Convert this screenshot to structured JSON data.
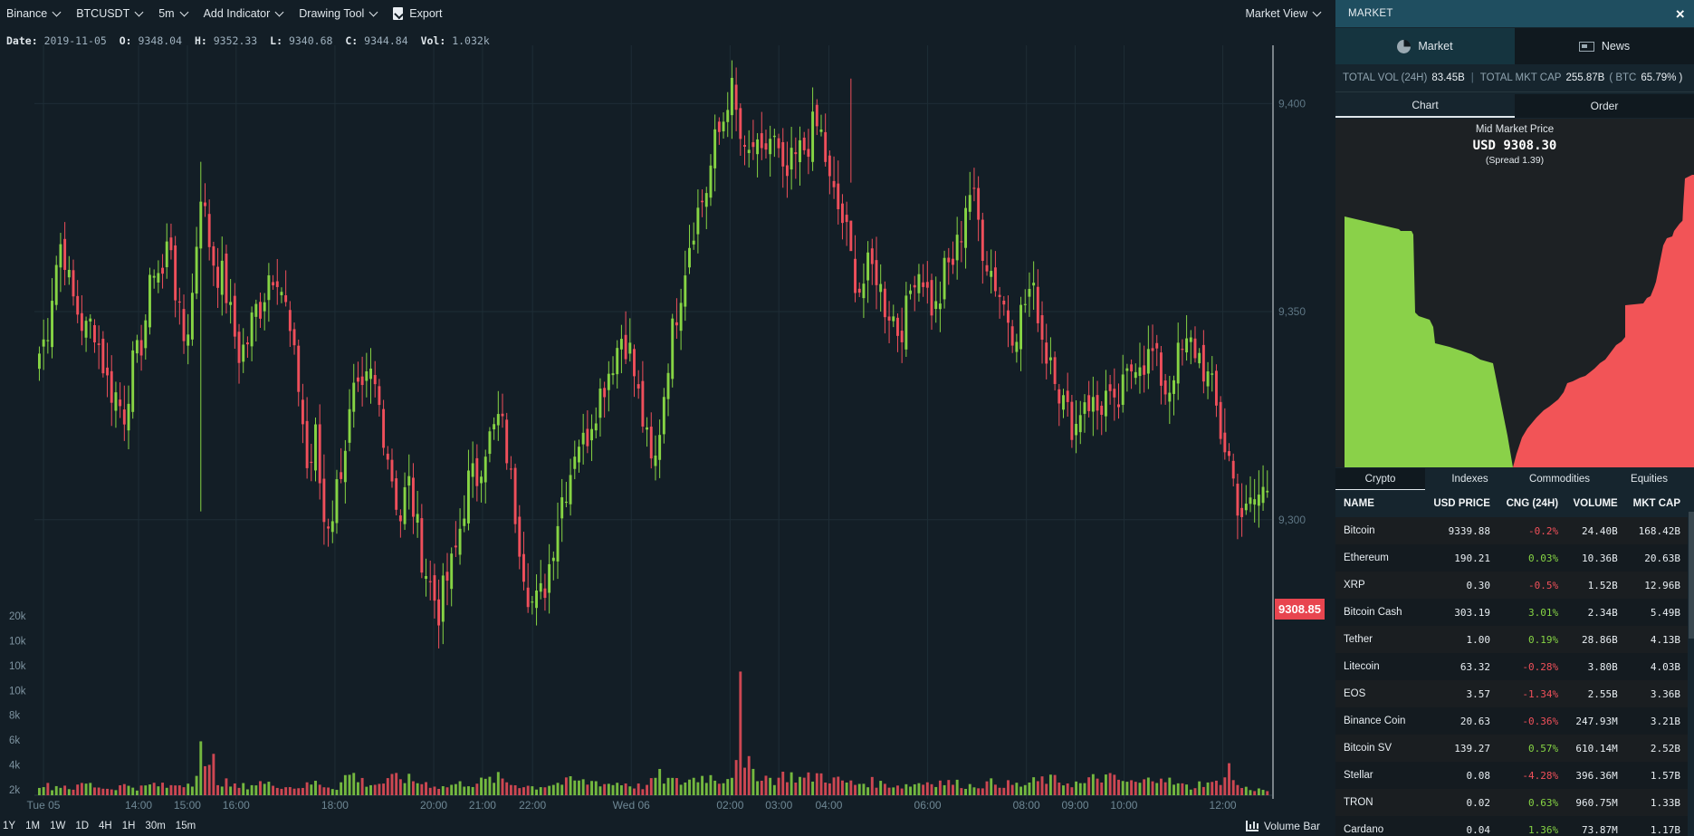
{
  "toolbar": {
    "exchange": "Binance",
    "pair": "BTCUSDT",
    "interval": "5m",
    "add_indicator": "Add Indicator",
    "drawing_tool": "Drawing Tool",
    "export": "Export",
    "market_view": "Market View"
  },
  "ohlc": {
    "date_label": "Date:",
    "date": "2019-11-05",
    "open_label": "O:",
    "open": "9348.04",
    "high_label": "H:",
    "high": "9352.33",
    "low_label": "L:",
    "low": "9340.68",
    "close_label": "C:",
    "close": "9344.84",
    "vol_label": "Vol:",
    "vol": "1.032k"
  },
  "current_price": "9308.85",
  "range_buttons": [
    "1Y",
    "1M",
    "1W",
    "1D",
    "4H",
    "1H",
    "30m",
    "15m"
  ],
  "volume_bar_label": "Volume Bar",
  "chart_data": {
    "type": "candlestick",
    "colors": {
      "up": "#86d444",
      "down": "#ef4f5b",
      "grid": "#1e2d36"
    },
    "y_ticks": [
      9400,
      9350,
      9300
    ],
    "ylim": [
      9266,
      9414
    ],
    "volume_ticks": [
      "20k",
      "10k",
      "10k",
      "10k",
      "8k",
      "6k",
      "4k",
      "2k"
    ],
    "x_ticks": [
      "Tue 05",
      "14:00",
      "15:00",
      "16:00",
      "18:00",
      "20:00",
      "21:00",
      "22:00",
      "Wed 06",
      "02:00",
      "03:00",
      "04:00",
      "06:00",
      "08:00",
      "09:00",
      "10:00",
      "12:00"
    ],
    "x_tick_fraction": [
      0.0,
      0.078,
      0.118,
      0.158,
      0.239,
      0.32,
      0.36,
      0.401,
      0.482,
      0.563,
      0.603,
      0.644,
      0.725,
      0.806,
      0.846,
      0.886,
      0.967
    ],
    "close_path": [
      9340,
      9345,
      9360,
      9368,
      9355,
      9350,
      9345,
      9348,
      9340,
      9332,
      9330,
      9325,
      9336,
      9340,
      9350,
      9362,
      9358,
      9370,
      9350,
      9342,
      9355,
      9380,
      9368,
      9360,
      9358,
      9348,
      9340,
      9342,
      9350,
      9352,
      9360,
      9360,
      9352,
      9340,
      9330,
      9310,
      9320,
      9300,
      9300,
      9310,
      9320,
      9330,
      9328,
      9335,
      9330,
      9320,
      9310,
      9300,
      9310,
      9300,
      9290,
      9284,
      9278,
      9285,
      9290,
      9300,
      9310,
      9310,
      9318,
      9320,
      9325,
      9315,
      9302,
      9290,
      9280,
      9280,
      9285,
      9295,
      9305,
      9310,
      9320,
      9318,
      9325,
      9330,
      9335,
      9340,
      9345,
      9340,
      9330,
      9320,
      9310,
      9325,
      9340,
      9350,
      9360,
      9370,
      9375,
      9380,
      9390,
      9395,
      9405,
      9395,
      9385,
      9390,
      9385,
      9392,
      9390,
      9380,
      9385,
      9388,
      9390,
      9395,
      9392,
      9380,
      9375,
      9370,
      9360,
      9355,
      9360,
      9360,
      9352,
      9350,
      9345,
      9350,
      9360,
      9360,
      9352,
      9350,
      9360,
      9362,
      9368,
      9380,
      9375,
      9365,
      9360,
      9355,
      9350,
      9345,
      9350,
      9355,
      9352,
      9340,
      9340,
      9330,
      9325,
      9322,
      9330,
      9328,
      9326,
      9330,
      9325,
      9330,
      9335,
      9340,
      9338,
      9340,
      9335,
      9330,
      9338,
      9340,
      9342,
      9340,
      9335,
      9330,
      9320,
      9315,
      9305,
      9300,
      9304,
      9306,
      9308
    ],
    "spike_markers": [
      {
        "index": 21,
        "high": 9386,
        "low": 9302
      },
      {
        "index": 106,
        "high": 9406,
        "low": 9381
      }
    ],
    "volume_profile_k": [
      1.5,
      1.2,
      1.0,
      1.4,
      0.9,
      1.0,
      1.6,
      1.2,
      1.1,
      0.8,
      1.0,
      1.2,
      1.3,
      0.9,
      1.1,
      1.4,
      1.2,
      1.0,
      1.4,
      1.5,
      1.6,
      5.5,
      16,
      2,
      1.8,
      1.3,
      1.0,
      1.2,
      1.4,
      1.6,
      1.3,
      1.5,
      1.2,
      1.0,
      1.1,
      1.2,
      1.6,
      1.4,
      1.1,
      1.0,
      2.2,
      2.8,
      1.9,
      1.5,
      1.4,
      1.6,
      1.8,
      2.4,
      2.1,
      1.8,
      1.6,
      1.5,
      1.2,
      1.0,
      1.3,
      1.4,
      1.6,
      1.5,
      1.7,
      1.9,
      2.2,
      1.8,
      1.4,
      1.3,
      1.2,
      1.0,
      1.2,
      1.4,
      1.5,
      1.6,
      1.9,
      1.7,
      1.6,
      1.8,
      1.5,
      1.4,
      1.6,
      1.5,
      1.2,
      1.1,
      1.3,
      2.6,
      2.0,
      1.8,
      1.6,
      1.9,
      2.1,
      2.4,
      2.3,
      2.0,
      2.2,
      3.0,
      12.5,
      3.6,
      3.0,
      2.4,
      2.0,
      2.2,
      2.6,
      2.4,
      2.0,
      2.2,
      2.6,
      2.4,
      2.0,
      1.8,
      1.6,
      1.4,
      1.6,
      1.7,
      1.5,
      1.4,
      1.3,
      1.2,
      1.3,
      1.5,
      1.6,
      1.8,
      1.7,
      1.6,
      1.5,
      1.4,
      1.2,
      1.3,
      1.4,
      1.6,
      1.5,
      1.4,
      1.3,
      1.2,
      1.6,
      1.8,
      2.0,
      1.9,
      1.7,
      1.6,
      1.5,
      1.4,
      2.0,
      2.4,
      2.2,
      2.0,
      1.8,
      1.6,
      1.5,
      1.7,
      2.2,
      3.0,
      1.8,
      1.4,
      1.2,
      1.0,
      1.4,
      1.8,
      1.2,
      2.2,
      3.4,
      1.2,
      0.9,
      0.8,
      0.7,
      0.6
    ]
  },
  "market": {
    "title": "MARKET",
    "close_label": "×",
    "tabs": {
      "market": "Market",
      "news": "News"
    },
    "totals": {
      "vol_label": "TOTAL VOL (24H)",
      "vol": "83.45B",
      "cap_label": "TOTAL MKT CAP",
      "cap": "255.87B",
      "btc_label": "( BTC",
      "btc": "65.79% )"
    },
    "sub_tabs": {
      "chart": "Chart",
      "order": "Order"
    },
    "depth": {
      "title": "Mid Market Price",
      "price": "USD 9308.30",
      "spread": "(Spread 1.39)",
      "bid_color": "#8ad149",
      "ask_color": "#f25457"
    },
    "categories": [
      "Crypto",
      "Indexes",
      "Commodities",
      "Equities"
    ],
    "columns": [
      "NAME",
      "USD PRICE",
      "CNG (24H)",
      "VOLUME",
      "MKT CAP"
    ],
    "rows": [
      {
        "name": "Bitcoin",
        "price": "9339.88",
        "change": "-0.2%",
        "volume": "24.40B",
        "cap": "168.42B"
      },
      {
        "name": "Ethereum",
        "price": "190.21",
        "change": "0.03%",
        "volume": "10.36B",
        "cap": "20.63B"
      },
      {
        "name": "XRP",
        "price": "0.30",
        "change": "-0.5%",
        "volume": "1.52B",
        "cap": "12.96B"
      },
      {
        "name": "Bitcoin Cash",
        "price": "303.19",
        "change": "3.01%",
        "volume": "2.34B",
        "cap": "5.49B"
      },
      {
        "name": "Tether",
        "price": "1.00",
        "change": "0.19%",
        "volume": "28.86B",
        "cap": "4.13B"
      },
      {
        "name": "Litecoin",
        "price": "63.32",
        "change": "-0.28%",
        "volume": "3.80B",
        "cap": "4.03B"
      },
      {
        "name": "EOS",
        "price": "3.57",
        "change": "-1.34%",
        "volume": "2.55B",
        "cap": "3.36B"
      },
      {
        "name": "Binance Coin",
        "price": "20.63",
        "change": "-0.36%",
        "volume": "247.93M",
        "cap": "3.21B"
      },
      {
        "name": "Bitcoin SV",
        "price": "139.27",
        "change": "0.57%",
        "volume": "610.14M",
        "cap": "2.52B"
      },
      {
        "name": "Stellar",
        "price": "0.08",
        "change": "-4.28%",
        "volume": "396.36M",
        "cap": "1.57B"
      },
      {
        "name": "TRON",
        "price": "0.02",
        "change": "0.63%",
        "volume": "960.75M",
        "cap": "1.33B"
      },
      {
        "name": "Cardano",
        "price": "0.04",
        "change": "1.36%",
        "volume": "73.87M",
        "cap": "1.17B"
      }
    ]
  }
}
